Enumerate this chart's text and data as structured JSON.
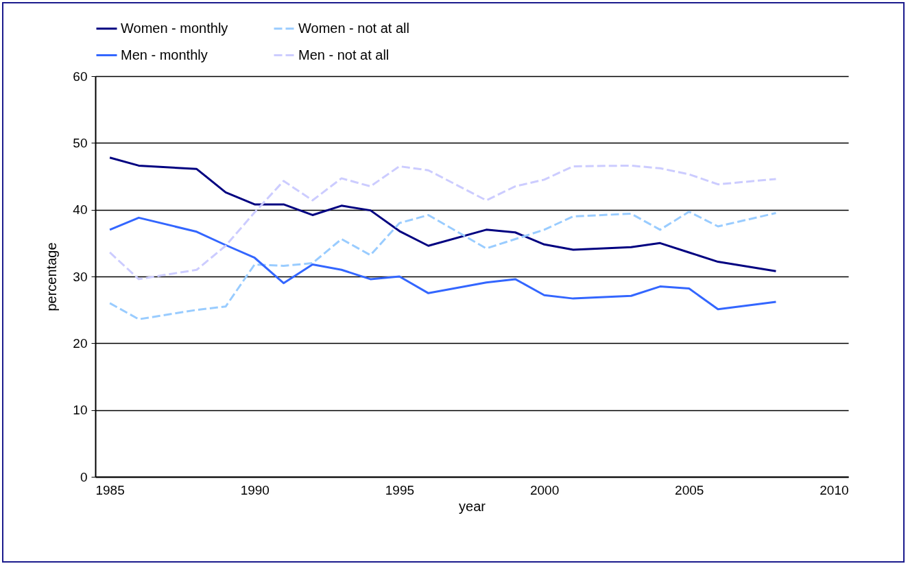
{
  "chart_data": {
    "type": "line",
    "xlabel": "year",
    "ylabel": "percentage",
    "x": [
      1985,
      1986,
      1988,
      1989,
      1990,
      1991,
      1992,
      1993,
      1994,
      1995,
      1996,
      1998,
      1999,
      2000,
      2001,
      2003,
      2004,
      2005,
      2006,
      2008
    ],
    "xlim": [
      1984.5,
      2010.5
    ],
    "xticks": [
      1985,
      1990,
      1995,
      2000,
      2005,
      2010
    ],
    "ylim": [
      0,
      60
    ],
    "yticks": [
      0,
      10,
      20,
      30,
      40,
      50,
      60
    ],
    "grid": "y",
    "legend": "top",
    "series": [
      {
        "name": "Women - monthly",
        "color": "#000080",
        "line_style": "solid",
        "values": [
          47.8,
          46.6,
          46.1,
          42.6,
          40.8,
          40.8,
          39.2,
          40.6,
          39.9,
          36.8,
          34.6,
          37.0,
          36.6,
          34.8,
          34.0,
          34.4,
          35.0,
          33.6,
          32.2,
          30.8
        ]
      },
      {
        "name": "Women - not at all",
        "color": "#99ccff",
        "line_style": "dashed",
        "values": [
          26.0,
          23.6,
          25.0,
          25.5,
          31.8,
          31.6,
          32.0,
          35.6,
          33.2,
          38.0,
          39.2,
          34.2,
          35.6,
          37.0,
          39.0,
          39.4,
          37.0,
          39.7,
          37.5,
          39.5
        ]
      },
      {
        "name": "Men - monthly",
        "color": "#3366ff",
        "line_style": "solid",
        "values": [
          37.0,
          38.8,
          36.7,
          34.7,
          32.8,
          29.0,
          31.8,
          31.0,
          29.6,
          30.0,
          27.5,
          29.1,
          29.6,
          27.2,
          26.7,
          27.1,
          28.5,
          28.2,
          25.1,
          26.2
        ]
      },
      {
        "name": "Men - not at all",
        "color": "#ccccff",
        "line_style": "dashed",
        "values": [
          33.6,
          29.6,
          31.0,
          34.6,
          39.6,
          44.3,
          41.4,
          44.7,
          43.5,
          46.5,
          45.9,
          41.4,
          43.5,
          44.5,
          46.5,
          46.6,
          46.2,
          45.3,
          43.8,
          44.6
        ]
      }
    ]
  }
}
